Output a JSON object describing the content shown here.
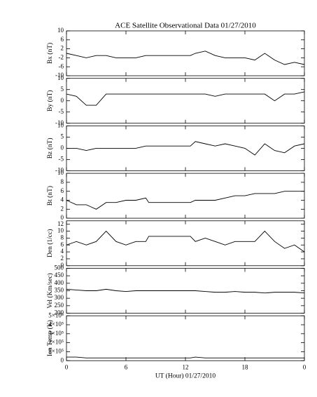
{
  "chart_data": [
    {
      "type": "line",
      "title": "ACE Satellite Observational Data   01/27/2010",
      "ylabel": "Bx (nT)",
      "color": "#000000",
      "ylim": [
        -10,
        10
      ],
      "yticks": [
        -10,
        -6,
        -2,
        2,
        6,
        10
      ],
      "x": [
        0,
        1,
        2,
        3,
        4,
        5,
        6,
        7,
        8,
        8.3,
        12.5,
        13,
        14,
        15,
        16,
        17,
        18,
        19,
        20,
        21,
        22,
        23,
        24
      ],
      "values": [
        0,
        -1,
        -2,
        -1,
        -1,
        -2,
        -2,
        -2,
        -1,
        -1,
        -1,
        0,
        1,
        -1,
        -2,
        -2,
        -2,
        -3,
        0,
        -3,
        -5,
        -4,
        -5
      ]
    },
    {
      "type": "line",
      "ylabel": "By (nT)",
      "color": "#000000",
      "ylim": [
        -10,
        10
      ],
      "yticks": [
        -10,
        -5,
        0,
        5,
        10
      ],
      "x": [
        0,
        1,
        2,
        3,
        4,
        5,
        6,
        7,
        8,
        8.3,
        12.5,
        13,
        14,
        15,
        16,
        17,
        18,
        19,
        20,
        21,
        22,
        23,
        24
      ],
      "values": [
        3,
        2,
        -2,
        -2,
        3,
        3,
        3,
        3,
        3,
        3,
        3,
        3,
        3,
        2,
        3,
        3,
        3,
        3,
        3,
        0,
        3,
        3,
        4
      ]
    },
    {
      "type": "line",
      "ylabel": "Bz (nT)",
      "color": "#000000",
      "ylim": [
        -10,
        10
      ],
      "yticks": [
        -10,
        -5,
        0,
        5,
        10
      ],
      "x": [
        0,
        1,
        2,
        3,
        4,
        5,
        6,
        7,
        8,
        8.3,
        12.5,
        13,
        14,
        15,
        16,
        17,
        18,
        19,
        20,
        21,
        22,
        23,
        24
      ],
      "values": [
        0,
        0,
        -1,
        0,
        0,
        0,
        0,
        0,
        1,
        1,
        1,
        3,
        2,
        1,
        2,
        1,
        0,
        -3,
        2,
        -1,
        -2,
        1,
        2
      ]
    },
    {
      "type": "line",
      "ylabel": "Bt (nT)",
      "color": "#000000",
      "ylim": [
        0,
        10
      ],
      "yticks": [
        0,
        2,
        4,
        6,
        8,
        10
      ],
      "x": [
        0,
        1,
        2,
        3,
        4,
        5,
        6,
        7,
        8,
        8.3,
        12.5,
        13,
        14,
        15,
        16,
        17,
        18,
        19,
        20,
        21,
        22,
        23,
        24
      ],
      "values": [
        4,
        3,
        3,
        2,
        3.5,
        3.5,
        4,
        4,
        4.5,
        3.5,
        3.5,
        4,
        4,
        4,
        4.5,
        5,
        5,
        5.5,
        5.5,
        5.5,
        6,
        6,
        6
      ]
    },
    {
      "type": "line",
      "ylabel": "Den (1/cc)",
      "color": "#000000",
      "ylim": [
        0,
        13
      ],
      "yticks": [
        0,
        2,
        4,
        6,
        8,
        10,
        12
      ],
      "x": [
        0,
        1,
        2,
        3,
        4,
        5,
        6,
        7,
        8,
        8.3,
        12.5,
        13,
        14,
        15,
        16,
        17,
        18,
        19,
        20,
        21,
        22,
        23,
        24
      ],
      "values": [
        6,
        7,
        6,
        7,
        10,
        7,
        6,
        7,
        7,
        8.5,
        8.5,
        7,
        8,
        7,
        6,
        7,
        7,
        7,
        10,
        7,
        5,
        6,
        4
      ]
    },
    {
      "type": "line",
      "ylabel": "Vel (Km/sec)",
      "color": "#000000",
      "ylim": [
        200,
        500
      ],
      "yticks": [
        200,
        250,
        300,
        350,
        400,
        450,
        500
      ],
      "x": [
        0,
        1,
        2,
        3,
        4,
        5,
        6,
        7,
        8,
        8.3,
        12.5,
        13,
        14,
        15,
        16,
        17,
        18,
        19,
        20,
        21,
        22,
        23,
        24
      ],
      "values": [
        360,
        355,
        350,
        350,
        360,
        350,
        345,
        350,
        350,
        350,
        350,
        350,
        345,
        340,
        340,
        345,
        340,
        340,
        335,
        340,
        340,
        340,
        335
      ]
    },
    {
      "type": "line",
      "ylabel": "Ion Temp (K)",
      "color": "#000000",
      "xlabel": "UT (Hour)   01/27/2010",
      "xlim": [
        0,
        24
      ],
      "xticks": [
        0,
        6,
        12,
        18,
        {
          "value": 24,
          "label": "0"
        }
      ],
      "ylim": [
        0,
        500000
      ],
      "yticks": [
        0,
        {
          "value": 100000,
          "label": "1×10⁵"
        },
        {
          "value": 200000,
          "label": "2×10⁵"
        },
        {
          "value": 300000,
          "label": "3×10⁵"
        },
        {
          "value": 400000,
          "label": "4×10⁵"
        },
        {
          "value": 500000,
          "label": "5×10⁵"
        }
      ],
      "x": [
        0,
        1,
        2,
        3,
        4,
        5,
        6,
        7,
        8,
        8.3,
        12.5,
        13,
        14,
        15,
        16,
        17,
        18,
        19,
        20,
        21,
        22,
        23,
        24
      ],
      "values": [
        40000,
        40000,
        30000,
        30000,
        30000,
        30000,
        30000,
        30000,
        30000,
        30000,
        30000,
        40000,
        30000,
        30000,
        30000,
        30000,
        30000,
        30000,
        30000,
        30000,
        30000,
        30000,
        30000
      ]
    }
  ]
}
